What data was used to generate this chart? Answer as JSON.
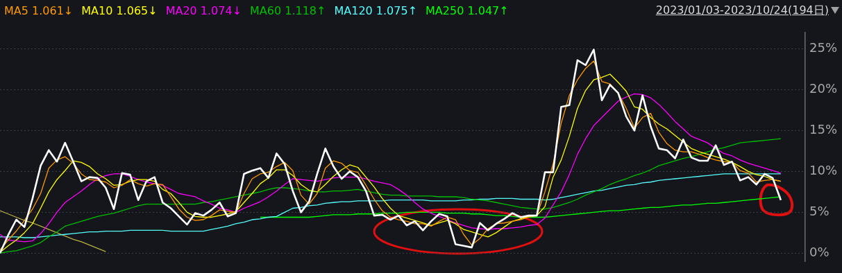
{
  "chart_data": {
    "type": "line",
    "subtitle": "2023/01/03-2023/10/24(194日)",
    "legend": "top",
    "grid": "y",
    "marker": "none",
    "tick_labels": "y",
    "categories": [
      null,
      null,
      null,
      null,
      null,
      null,
      null,
      null,
      null,
      null,
      null,
      null,
      null,
      null,
      null,
      null,
      null,
      null,
      null,
      null,
      null,
      null,
      null,
      null,
      null,
      null,
      null,
      null,
      null,
      null,
      null,
      null,
      null,
      null,
      null,
      null,
      null,
      null,
      null,
      null,
      null,
      null,
      null,
      null,
      null,
      null,
      null,
      null,
      null,
      null,
      null,
      null,
      null,
      null,
      null,
      null,
      null,
      null,
      null,
      null,
      null,
      null,
      null,
      null,
      null,
      null,
      null,
      null,
      null,
      null,
      null,
      null,
      null,
      null,
      null,
      null,
      null,
      null,
      null,
      null,
      null,
      null,
      null,
      null,
      null,
      null,
      null,
      null,
      null,
      null,
      null,
      null,
      null,
      null,
      null,
      null,
      null,
      null,
      null,
      null
    ],
    "ylim": [
      -1,
      27
    ],
    "yticks": [
      {
        "value": 0,
        "label": "0%"
      },
      {
        "value": 5,
        "label": "5%"
      },
      {
        "value": 10,
        "label": "10%"
      },
      {
        "value": 15,
        "label": "15%"
      },
      {
        "value": 20,
        "label": "20%"
      },
      {
        "value": 25,
        "label": "25%"
      }
    ],
    "series": [
      {
        "color": "#ff9900",
        "name": "MA5 1.061↓",
        "values": [
          0.4,
          1.6,
          2.7,
          4.0,
          5.4,
          7.3,
          10.4,
          11.4,
          11.8,
          11.0,
          9.7,
          9.0,
          8.9,
          8.7,
          8.0,
          8.3,
          9.0,
          8.5,
          8.2,
          8.5,
          8.4,
          6.9,
          5.4,
          4.4,
          4.0,
          4.1,
          4.6,
          5.3,
          5.1,
          5.0,
          7.3,
          9.1,
          9.7,
          9.9,
          10.6,
          11.1,
          10.1,
          7.1,
          6.0,
          7.3,
          10.4,
          11.3,
          11.0,
          10.1,
          9.9,
          8.3,
          6.6,
          5.2,
          4.4,
          4.1,
          3.9,
          3.6,
          3.6,
          3.3,
          3.9,
          4.4,
          4.1,
          2.3,
          1.0,
          1.8,
          3.0,
          3.6,
          3.7,
          3.9,
          4.1,
          4.4,
          4.6,
          7.5,
          10.9,
          15.9,
          19.3,
          21.2,
          22.6,
          23.5,
          21.0,
          20.7,
          19.6,
          17.7,
          15.3,
          16.6,
          17.1,
          14.8,
          13.4,
          12.6,
          12.4,
          12.4,
          12.1,
          11.7,
          11.4,
          11.2,
          11.1,
          10.1,
          9.8,
          8.7,
          8.9,
          9.0,
          8.8,
          null,
          null,
          null
        ]
      },
      {
        "color": "#ffff00",
        "name": "MA10 1.065↓",
        "values": [
          0.1,
          0.9,
          1.6,
          2.5,
          3.6,
          5.5,
          7.5,
          9.0,
          10.1,
          11.3,
          11.1,
          10.6,
          9.7,
          9.1,
          8.3,
          8.4,
          8.8,
          9.0,
          9.0,
          8.8,
          7.8,
          7.3,
          6.2,
          5.0,
          4.5,
          4.4,
          4.4,
          4.6,
          4.8,
          5.1,
          6.2,
          7.3,
          8.5,
          9.2,
          10.2,
          10.2,
          9.5,
          8.4,
          7.7,
          7.5,
          8.4,
          9.4,
          10.2,
          10.8,
          10.5,
          9.3,
          8.1,
          6.7,
          5.5,
          4.6,
          4.3,
          4.0,
          3.7,
          3.4,
          3.7,
          4.0,
          3.6,
          2.9,
          2.6,
          2.3,
          2.0,
          2.5,
          3.2,
          3.9,
          4.2,
          4.5,
          4.6,
          5.7,
          9.3,
          11.4,
          14.3,
          17.7,
          19.9,
          21.2,
          21.5,
          21.9,
          20.9,
          19.8,
          17.9,
          17.6,
          16.6,
          15.8,
          15.2,
          14.4,
          13.6,
          12.8,
          12.4,
          12.1,
          11.8,
          11.5,
          11.1,
          10.6,
          10.0,
          9.6,
          9.4,
          9.0,
          8.8,
          null,
          null,
          null
        ]
      },
      {
        "color": "#ff00ff",
        "name": "MA20 1.074↓",
        "values": [
          2.3,
          1.6,
          1.5,
          1.4,
          1.5,
          2.4,
          3.6,
          5.0,
          6.2,
          6.9,
          7.6,
          8.4,
          9.1,
          9.5,
          9.7,
          9.7,
          9.4,
          9.0,
          8.7,
          8.5,
          8.3,
          7.8,
          7.3,
          7.1,
          6.9,
          6.4,
          6.0,
          5.5,
          5.3,
          5.0,
          5.5,
          5.9,
          6.3,
          6.9,
          7.6,
          8.4,
          9.1,
          9.0,
          8.9,
          8.8,
          9.0,
          9.2,
          9.3,
          9.3,
          9.3,
          9.1,
          8.8,
          8.6,
          8.4,
          7.8,
          7.1,
          6.2,
          5.4,
          4.9,
          4.5,
          4.1,
          3.7,
          3.4,
          3.1,
          3.0,
          2.9,
          3.0,
          3.0,
          3.1,
          3.2,
          3.4,
          3.5,
          4.3,
          5.9,
          7.5,
          9.6,
          12.1,
          14.0,
          15.6,
          16.6,
          17.6,
          18.6,
          19.1,
          19.5,
          19.4,
          19.0,
          18.2,
          17.2,
          16.1,
          15.2,
          14.3,
          13.9,
          13.5,
          12.8,
          12.2,
          11.9,
          11.4,
          11.0,
          10.7,
          10.4,
          10.1,
          9.8,
          null,
          null,
          null
        ]
      },
      {
        "color": "#00c000",
        "name": "MA60 1.118↑",
        "values": [
          0.0,
          0.2,
          0.3,
          0.6,
          0.9,
          1.3,
          2.0,
          2.6,
          3.3,
          3.6,
          3.9,
          4.2,
          4.5,
          4.7,
          4.9,
          5.2,
          5.5,
          5.8,
          6.0,
          6.0,
          6.0,
          6.0,
          6.0,
          6.0,
          6.0,
          6.2,
          6.3,
          6.5,
          6.7,
          6.9,
          7.1,
          7.3,
          7.5,
          7.8,
          8.0,
          8.0,
          7.9,
          7.8,
          7.6,
          7.5,
          7.5,
          7.6,
          7.6,
          7.7,
          7.8,
          7.6,
          7.4,
          7.2,
          7.1,
          7.1,
          7.0,
          7.0,
          7.0,
          7.0,
          6.9,
          6.9,
          6.9,
          6.8,
          6.6,
          6.5,
          6.4,
          6.2,
          6.0,
          5.8,
          5.6,
          5.5,
          5.4,
          5.4,
          5.6,
          5.9,
          6.2,
          6.6,
          7.1,
          7.5,
          7.9,
          8.4,
          8.8,
          9.1,
          9.5,
          9.8,
          10.2,
          10.7,
          11.0,
          11.3,
          11.6,
          11.8,
          12.1,
          12.4,
          12.7,
          12.9,
          13.2,
          13.5,
          13.6,
          13.7,
          13.8,
          13.9,
          14.0,
          null,
          null,
          null
        ]
      },
      {
        "color": "#55ffff",
        "name": "MA120 1.075↑",
        "values": [
          2.0,
          2.0,
          2.0,
          1.9,
          1.9,
          2.0,
          2.1,
          2.2,
          2.3,
          2.4,
          2.5,
          2.6,
          2.6,
          2.7,
          2.7,
          2.7,
          2.8,
          2.8,
          2.8,
          2.8,
          2.8,
          2.7,
          2.7,
          2.7,
          2.7,
          2.7,
          2.9,
          3.1,
          3.3,
          3.6,
          3.8,
          4.1,
          4.2,
          4.4,
          4.5,
          5.0,
          5.5,
          5.6,
          5.8,
          5.9,
          6.1,
          6.2,
          6.3,
          6.3,
          6.4,
          6.4,
          6.4,
          6.4,
          6.5,
          6.5,
          6.5,
          6.5,
          6.5,
          6.4,
          6.4,
          6.4,
          6.4,
          6.5,
          6.5,
          6.6,
          6.6,
          6.7,
          6.7,
          6.7,
          6.6,
          6.6,
          6.6,
          6.5,
          6.6,
          6.8,
          7.0,
          7.2,
          7.4,
          7.6,
          7.7,
          7.9,
          8.1,
          8.3,
          8.4,
          8.6,
          8.7,
          8.9,
          9.0,
          9.1,
          9.2,
          9.3,
          9.4,
          9.5,
          9.6,
          9.7,
          9.7,
          9.7,
          9.7,
          9.7,
          9.7,
          9.7,
          9.7,
          null,
          null,
          null
        ]
      },
      {
        "color": "#00ff00",
        "name": "MA250 1.047↑",
        "values": [
          null,
          null,
          null,
          null,
          null,
          null,
          null,
          null,
          null,
          null,
          null,
          null,
          null,
          null,
          null,
          null,
          null,
          null,
          null,
          null,
          null,
          null,
          null,
          null,
          null,
          null,
          null,
          null,
          null,
          null,
          null,
          null,
          4.4,
          4.4,
          4.4,
          4.4,
          4.4,
          4.4,
          4.4,
          4.5,
          4.6,
          4.7,
          4.7,
          4.7,
          4.8,
          4.8,
          4.8,
          4.9,
          4.9,
          4.9,
          5.0,
          5.0,
          5.0,
          5.0,
          5.0,
          4.9,
          4.9,
          4.9,
          4.8,
          4.8,
          4.7,
          4.6,
          4.6,
          4.5,
          4.4,
          4.4,
          4.4,
          4.4,
          4.5,
          4.6,
          4.7,
          4.8,
          4.9,
          5.0,
          5.1,
          5.2,
          5.2,
          5.3,
          5.4,
          5.5,
          5.6,
          5.6,
          5.7,
          5.8,
          5.9,
          5.9,
          6.0,
          6.1,
          6.1,
          6.2,
          6.3,
          6.4,
          6.5,
          6.6,
          6.7,
          6.8,
          6.9,
          null,
          null,
          null
        ]
      },
      {
        "color": "#b8b040",
        "values": [
          5.2,
          4.8,
          4.4,
          4.0,
          3.7,
          3.3,
          2.9,
          2.5,
          2.1,
          1.7,
          1.4,
          1.0,
          0.6,
          0.2,
          null,
          null,
          null,
          null,
          null,
          null,
          null,
          null,
          null,
          null,
          null,
          null,
          null,
          null,
          null,
          null,
          null,
          null,
          null,
          null,
          null,
          null,
          null,
          null,
          null,
          null,
          null,
          null,
          null,
          null,
          null,
          null,
          null,
          null,
          null,
          null,
          null,
          null,
          null,
          null,
          null,
          null,
          null,
          null,
          null,
          null,
          null,
          null,
          null,
          null,
          null,
          null,
          null,
          null,
          null,
          null,
          null,
          null,
          null,
          null,
          null,
          null,
          null,
          null,
          null,
          null,
          null,
          null,
          null,
          null,
          null,
          null,
          null,
          null,
          null,
          null,
          null,
          null,
          null,
          null,
          null,
          null,
          null,
          null,
          null,
          null
        ]
      },
      {
        "color": "#ffffff",
        "values": [
          0,
          2.2,
          4.1,
          3.2,
          6.7,
          10.7,
          12.6,
          11.2,
          13.5,
          11.2,
          8.8,
          9.3,
          9.2,
          8.0,
          5.4,
          9.8,
          9.6,
          6.5,
          8.8,
          9.3,
          6.2,
          5.5,
          4.5,
          3.5,
          4.9,
          4.6,
          5.3,
          6.2,
          4.5,
          4.9,
          9.7,
          10.1,
          10.4,
          9.2,
          12.2,
          10.9,
          7.6,
          5.0,
          6.3,
          9.7,
          12.8,
          10.6,
          9.1,
          10.0,
          9.3,
          7.6,
          4.6,
          4.7,
          4.1,
          4.6,
          3.4,
          3.9,
          2.8,
          3.9,
          4.8,
          4.5,
          1.1,
          0.9,
          0.7,
          3.7,
          2.8,
          3.6,
          4.2,
          4.9,
          4.4,
          4.6,
          4.6,
          9.9,
          9.9,
          17.9,
          18.1,
          23.6,
          23.0,
          24.9,
          18.7,
          20.6,
          19.6,
          16.7,
          15.0,
          19.3,
          15.5,
          12.8,
          12.6,
          11.6,
          13.9,
          11.7,
          11.3,
          11.3,
          13.2,
          10.8,
          11.2,
          8.9,
          9.3,
          8.4,
          9.7,
          9.2,
          6.5,
          null,
          null,
          null
        ]
      }
    ]
  }
}
